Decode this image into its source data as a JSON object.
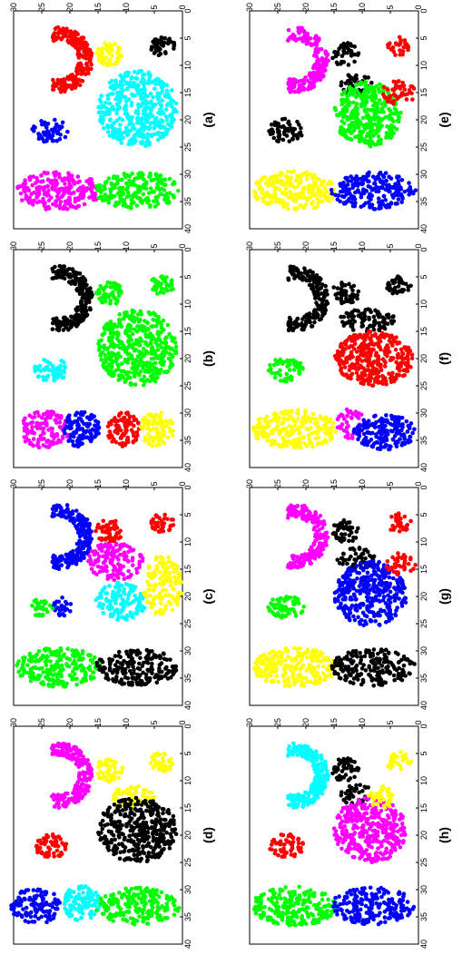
{
  "figure": {
    "orientation": "rotated-90-ccw",
    "xticks": [
      "0",
      "5",
      "10",
      "15",
      "20",
      "25",
      "30",
      "35",
      "40"
    ],
    "yticks": [
      "0",
      "5",
      "10",
      "15",
      "20",
      "25",
      "30"
    ]
  },
  "chart_data": [
    {
      "type": "scatter",
      "label": "(a)",
      "xlim": [
        0,
        40
      ],
      "ylim": [
        0,
        30
      ],
      "series": [
        {
          "color": "#ff0000",
          "clusters": [
            {
              "shape": "u",
              "cx": 9,
              "cy": 22,
              "rx": 6,
              "ry": 6,
              "n": 240
            }
          ]
        },
        {
          "color": "#0000ff",
          "clusters": [
            {
              "shape": "ellipse",
              "cx": 22,
              "cy": 23.5,
              "rx": 2.2,
              "ry": 3.2,
              "n": 60
            }
          ]
        },
        {
          "color": "#ff00ff",
          "clusters": [
            {
              "shape": "ellipse",
              "cx": 33,
              "cy": 22,
              "rx": 3.6,
              "ry": 7.5,
              "n": 230
            }
          ]
        },
        {
          "color": "#ffff00",
          "clusters": [
            {
              "shape": "ellipse",
              "cx": 8,
              "cy": 13,
              "rx": 2.2,
              "ry": 2.4,
              "n": 55
            }
          ]
        },
        {
          "color": "#00ffff",
          "clusters": [
            {
              "shape": "ellipse",
              "cx": 18,
              "cy": 8,
              "rx": 7,
              "ry": 7,
              "n": 420
            }
          ]
        },
        {
          "color": "#00ff00",
          "clusters": [
            {
              "shape": "ellipse",
              "cx": 33,
              "cy": 8,
              "rx": 3.4,
              "ry": 7.5,
              "n": 200
            }
          ]
        },
        {
          "color": "#000000",
          "clusters": [
            {
              "shape": "ellipse",
              "cx": 6.5,
              "cy": 3.5,
              "rx": 1.8,
              "ry": 2.2,
              "n": 40
            }
          ]
        }
      ]
    },
    {
      "type": "scatter",
      "label": "(b)",
      "xlim": [
        0,
        40
      ],
      "ylim": [
        0,
        30
      ],
      "series": [
        {
          "color": "#000000",
          "clusters": [
            {
              "shape": "u",
              "cx": 9,
              "cy": 22,
              "rx": 6,
              "ry": 6,
              "n": 240
            }
          ]
        },
        {
          "color": "#00ffff",
          "clusters": [
            {
              "shape": "ellipse",
              "cx": 22,
              "cy": 23.5,
              "rx": 2.2,
              "ry": 3.2,
              "n": 60
            }
          ]
        },
        {
          "color": "#ff00ff",
          "clusters": [
            {
              "shape": "ellipse",
              "cx": 33,
              "cy": 24.5,
              "rx": 3.4,
              "ry": 4.5,
              "n": 120
            }
          ]
        },
        {
          "color": "#0000ff",
          "clusters": [
            {
              "shape": "ellipse",
              "cx": 33,
              "cy": 18,
              "rx": 3.2,
              "ry": 3.5,
              "n": 110
            }
          ]
        },
        {
          "color": "#ff0000",
          "clusters": [
            {
              "shape": "ellipse",
              "cx": 33,
              "cy": 10.5,
              "rx": 3.2,
              "ry": 3,
              "n": 90
            }
          ]
        },
        {
          "color": "#ffff00",
          "clusters": [
            {
              "shape": "ellipse",
              "cx": 33,
              "cy": 4.5,
              "rx": 3.2,
              "ry": 3,
              "n": 90
            }
          ]
        },
        {
          "color": "#00ff00",
          "clusters": [
            {
              "shape": "ellipse",
              "cx": 18,
              "cy": 8,
              "rx": 7,
              "ry": 7,
              "n": 420
            },
            {
              "shape": "ellipse",
              "cx": 8,
              "cy": 13,
              "rx": 2.2,
              "ry": 2.4,
              "n": 55
            },
            {
              "shape": "ellipse",
              "cx": 6.5,
              "cy": 3.5,
              "rx": 1.8,
              "ry": 2.2,
              "n": 40
            }
          ]
        }
      ]
    },
    {
      "type": "scatter",
      "label": "(c)",
      "xlim": [
        0,
        40
      ],
      "ylim": [
        0,
        30
      ],
      "series": [
        {
          "color": "#0000ff",
          "clusters": [
            {
              "shape": "u",
              "cx": 9,
              "cy": 22,
              "rx": 6,
              "ry": 6,
              "n": 240
            },
            {
              "shape": "ellipse",
              "cx": 22,
              "cy": 21.5,
              "rx": 1.8,
              "ry": 1.8,
              "n": 25
            }
          ]
        },
        {
          "color": "#00ff00",
          "clusters": [
            {
              "shape": "ellipse",
              "cx": 22,
              "cy": 25,
              "rx": 1.8,
              "ry": 2,
              "n": 30
            },
            {
              "shape": "ellipse",
              "cx": 33,
              "cy": 22,
              "rx": 3.6,
              "ry": 7.5,
              "n": 230
            }
          ]
        },
        {
          "color": "#ff0000",
          "clusters": [
            {
              "shape": "ellipse",
              "cx": 8,
              "cy": 13,
              "rx": 2.2,
              "ry": 2.4,
              "n": 55
            },
            {
              "shape": "ellipse",
              "cx": 6.5,
              "cy": 3.5,
              "rx": 1.8,
              "ry": 2.2,
              "n": 40
            }
          ]
        },
        {
          "color": "#ff00ff",
          "clusters": [
            {
              "shape": "ellipse",
              "cx": 13.5,
              "cy": 12,
              "rx": 3.5,
              "ry": 5,
              "n": 140
            }
          ]
        },
        {
          "color": "#00ffff",
          "clusters": [
            {
              "shape": "ellipse",
              "cx": 21,
              "cy": 11,
              "rx": 3.5,
              "ry": 4.5,
              "n": 140
            }
          ]
        },
        {
          "color": "#ffff00",
          "clusters": [
            {
              "shape": "ellipse",
              "cx": 18,
              "cy": 3.5,
              "rx": 5.5,
              "ry": 3.5,
              "n": 140
            }
          ]
        },
        {
          "color": "#000000",
          "clusters": [
            {
              "shape": "ellipse",
              "cx": 33,
              "cy": 8,
              "rx": 3.4,
              "ry": 7.5,
              "n": 200
            }
          ]
        }
      ]
    },
    {
      "type": "scatter",
      "label": "(d)",
      "xlim": [
        0,
        40
      ],
      "ylim": [
        0,
        30
      ],
      "series": [
        {
          "color": "#ff00ff",
          "clusters": [
            {
              "shape": "u",
              "cx": 9,
              "cy": 22,
              "rx": 6,
              "ry": 6,
              "n": 240
            }
          ]
        },
        {
          "color": "#ff0000",
          "clusters": [
            {
              "shape": "ellipse",
              "cx": 22,
              "cy": 23.5,
              "rx": 2.2,
              "ry": 3.2,
              "n": 60
            }
          ]
        },
        {
          "color": "#0000ff",
          "clusters": [
            {
              "shape": "ellipse",
              "cx": 33,
              "cy": 26,
              "rx": 3.4,
              "ry": 4.5,
              "n": 120
            }
          ]
        },
        {
          "color": "#00ffff",
          "clusters": [
            {
              "shape": "ellipse",
              "cx": 32.5,
              "cy": 18,
              "rx": 3.2,
              "ry": 3.5,
              "n": 110
            }
          ]
        },
        {
          "color": "#00ff00",
          "clusters": [
            {
              "shape": "ellipse",
              "cx": 33,
              "cy": 8,
              "rx": 3.4,
              "ry": 7.5,
              "n": 200
            }
          ]
        },
        {
          "color": "#ffff00",
          "clusters": [
            {
              "shape": "ellipse",
              "cx": 8,
              "cy": 13,
              "rx": 2.2,
              "ry": 2.4,
              "n": 55
            },
            {
              "shape": "ellipse",
              "cx": 6.5,
              "cy": 3.5,
              "rx": 1.8,
              "ry": 2.2,
              "n": 40
            },
            {
              "shape": "ellipse",
              "cx": 13,
              "cy": 9,
              "rx": 2.2,
              "ry": 4,
              "n": 60
            }
          ]
        },
        {
          "color": "#000000",
          "clusters": [
            {
              "shape": "ellipse",
              "cx": 19,
              "cy": 8,
              "rx": 6,
              "ry": 7,
              "n": 380
            }
          ]
        }
      ]
    },
    {
      "type": "scatter",
      "label": "(e)",
      "xlim": [
        0,
        40
      ],
      "ylim": [
        0,
        30
      ],
      "series": [
        {
          "color": "#ff00ff",
          "clusters": [
            {
              "shape": "u",
              "cx": 9,
              "cy": 22,
              "rx": 6,
              "ry": 6,
              "n": 200
            }
          ]
        },
        {
          "color": "#000000",
          "clusters": [
            {
              "shape": "ellipse",
              "cx": 22,
              "cy": 23.5,
              "rx": 2.2,
              "ry": 3.2,
              "n": 60
            },
            {
              "shape": "ellipse",
              "cx": 8,
              "cy": 13,
              "rx": 2.2,
              "ry": 2.4,
              "n": 40
            },
            {
              "shape": "ellipse",
              "cx": 13.5,
              "cy": 11,
              "rx": 2,
              "ry": 3,
              "n": 40
            }
          ]
        },
        {
          "color": "#ffff00",
          "clusters": [
            {
              "shape": "ellipse",
              "cx": 33,
              "cy": 22,
              "rx": 3.6,
              "ry": 7.5,
              "n": 230
            }
          ]
        },
        {
          "color": "#0000ff",
          "clusters": [
            {
              "shape": "ellipse",
              "cx": 33,
              "cy": 8,
              "rx": 3.4,
              "ry": 7.5,
              "n": 200
            }
          ]
        },
        {
          "color": "#00ff00",
          "clusters": [
            {
              "shape": "ellipse",
              "cx": 19,
              "cy": 9,
              "rx": 6,
              "ry": 6,
              "n": 340
            }
          ]
        },
        {
          "color": "#ff0000",
          "clusters": [
            {
              "shape": "ellipse",
              "cx": 15,
              "cy": 3.5,
              "rx": 2.2,
              "ry": 3,
              "n": 50
            },
            {
              "shape": "ellipse",
              "cx": 6.5,
              "cy": 3.5,
              "rx": 1.8,
              "ry": 2.2,
              "n": 30
            }
          ]
        }
      ]
    },
    {
      "type": "scatter",
      "label": "(f)",
      "xlim": [
        0,
        40
      ],
      "ylim": [
        0,
        30
      ],
      "series": [
        {
          "color": "#000000",
          "clusters": [
            {
              "shape": "u",
              "cx": 9,
              "cy": 22,
              "rx": 6,
              "ry": 6,
              "n": 200
            },
            {
              "shape": "ellipse",
              "cx": 8,
              "cy": 13,
              "rx": 2.2,
              "ry": 2.4,
              "n": 50
            },
            {
              "shape": "ellipse",
              "cx": 6.5,
              "cy": 3.5,
              "rx": 1.8,
              "ry": 2.2,
              "n": 40
            },
            {
              "shape": "ellipse",
              "cx": 13,
              "cy": 9,
              "rx": 2.2,
              "ry": 5,
              "n": 90
            }
          ]
        },
        {
          "color": "#00ff00",
          "clusters": [
            {
              "shape": "ellipse",
              "cx": 22,
              "cy": 23.5,
              "rx": 2.2,
              "ry": 3.2,
              "n": 60
            }
          ]
        },
        {
          "color": "#ffff00",
          "clusters": [
            {
              "shape": "ellipse",
              "cx": 33,
              "cy": 22,
              "rx": 3.6,
              "ry": 7.5,
              "n": 230
            }
          ]
        },
        {
          "color": "#ff00ff",
          "clusters": [
            {
              "shape": "ellipse",
              "cx": 32,
              "cy": 12,
              "rx": 2.8,
              "ry": 2.5,
              "n": 50
            }
          ]
        },
        {
          "color": "#0000ff",
          "clusters": [
            {
              "shape": "ellipse",
              "cx": 33.5,
              "cy": 6,
              "rx": 3.2,
              "ry": 5.5,
              "n": 180
            }
          ]
        },
        {
          "color": "#ff0000",
          "clusters": [
            {
              "shape": "ellipse",
              "cx": 20,
              "cy": 8,
              "rx": 5,
              "ry": 7,
              "n": 360
            }
          ]
        }
      ]
    },
    {
      "type": "scatter",
      "label": "(g)",
      "xlim": [
        0,
        40
      ],
      "ylim": [
        0,
        30
      ],
      "series": [
        {
          "color": "#ff00ff",
          "clusters": [
            {
              "shape": "u",
              "cx": 9,
              "cy": 22,
              "rx": 6,
              "ry": 6,
              "n": 200
            }
          ]
        },
        {
          "color": "#00ff00",
          "clusters": [
            {
              "shape": "ellipse",
              "cx": 22,
              "cy": 23.5,
              "rx": 2.2,
              "ry": 3.2,
              "n": 60
            }
          ]
        },
        {
          "color": "#ffff00",
          "clusters": [
            {
              "shape": "ellipse",
              "cx": 33,
              "cy": 22,
              "rx": 3.6,
              "ry": 7.5,
              "n": 230
            }
          ]
        },
        {
          "color": "#000000",
          "clusters": [
            {
              "shape": "ellipse",
              "cx": 33,
              "cy": 8,
              "rx": 3.4,
              "ry": 7.5,
              "n": 200
            },
            {
              "shape": "ellipse",
              "cx": 8,
              "cy": 13,
              "rx": 2.2,
              "ry": 2.4,
              "n": 50
            },
            {
              "shape": "ellipse",
              "cx": 13,
              "cy": 11,
              "rx": 2,
              "ry": 3.5,
              "n": 50
            }
          ]
        },
        {
          "color": "#0000ff",
          "clusters": [
            {
              "shape": "ellipse",
              "cx": 19.5,
              "cy": 8.5,
              "rx": 6,
              "ry": 6.5,
              "n": 360
            }
          ]
        },
        {
          "color": "#ff0000",
          "clusters": [
            {
              "shape": "ellipse",
              "cx": 14,
              "cy": 3.5,
              "rx": 2,
              "ry": 3,
              "n": 40
            },
            {
              "shape": "ellipse",
              "cx": 6.5,
              "cy": 3.5,
              "rx": 1.8,
              "ry": 2.2,
              "n": 30
            }
          ]
        }
      ]
    },
    {
      "type": "scatter",
      "label": "(h)",
      "xlim": [
        0,
        40
      ],
      "ylim": [
        0,
        30
      ],
      "series": [
        {
          "color": "#00ffff",
          "clusters": [
            {
              "shape": "u",
              "cx": 9,
              "cy": 22,
              "rx": 6,
              "ry": 6,
              "n": 240
            }
          ]
        },
        {
          "color": "#ff0000",
          "clusters": [
            {
              "shape": "ellipse",
              "cx": 22,
              "cy": 23.5,
              "rx": 2.2,
              "ry": 3.2,
              "n": 60
            }
          ]
        },
        {
          "color": "#00ff00",
          "clusters": [
            {
              "shape": "ellipse",
              "cx": 33,
              "cy": 22,
              "rx": 3.6,
              "ry": 7.5,
              "n": 230
            }
          ]
        },
        {
          "color": "#0000ff",
          "clusters": [
            {
              "shape": "ellipse",
              "cx": 33,
              "cy": 8,
              "rx": 3.4,
              "ry": 7.5,
              "n": 200
            }
          ]
        },
        {
          "color": "#000000",
          "clusters": [
            {
              "shape": "ellipse",
              "cx": 8,
              "cy": 13,
              "rx": 2.2,
              "ry": 2.4,
              "n": 50
            },
            {
              "shape": "ellipse",
              "cx": 12.5,
              "cy": 11,
              "rx": 2,
              "ry": 3,
              "n": 40
            }
          ]
        },
        {
          "color": "#ff00ff",
          "clusters": [
            {
              "shape": "ellipse",
              "cx": 19,
              "cy": 8.5,
              "rx": 6,
              "ry": 6.5,
              "n": 360
            }
          ]
        },
        {
          "color": "#ffff00",
          "clusters": [
            {
              "shape": "ellipse",
              "cx": 6.5,
              "cy": 3.5,
              "rx": 1.8,
              "ry": 2.2,
              "n": 30
            },
            {
              "shape": "ellipse",
              "cx": 13,
              "cy": 6,
              "rx": 2,
              "ry": 3,
              "n": 40
            }
          ]
        }
      ]
    }
  ]
}
